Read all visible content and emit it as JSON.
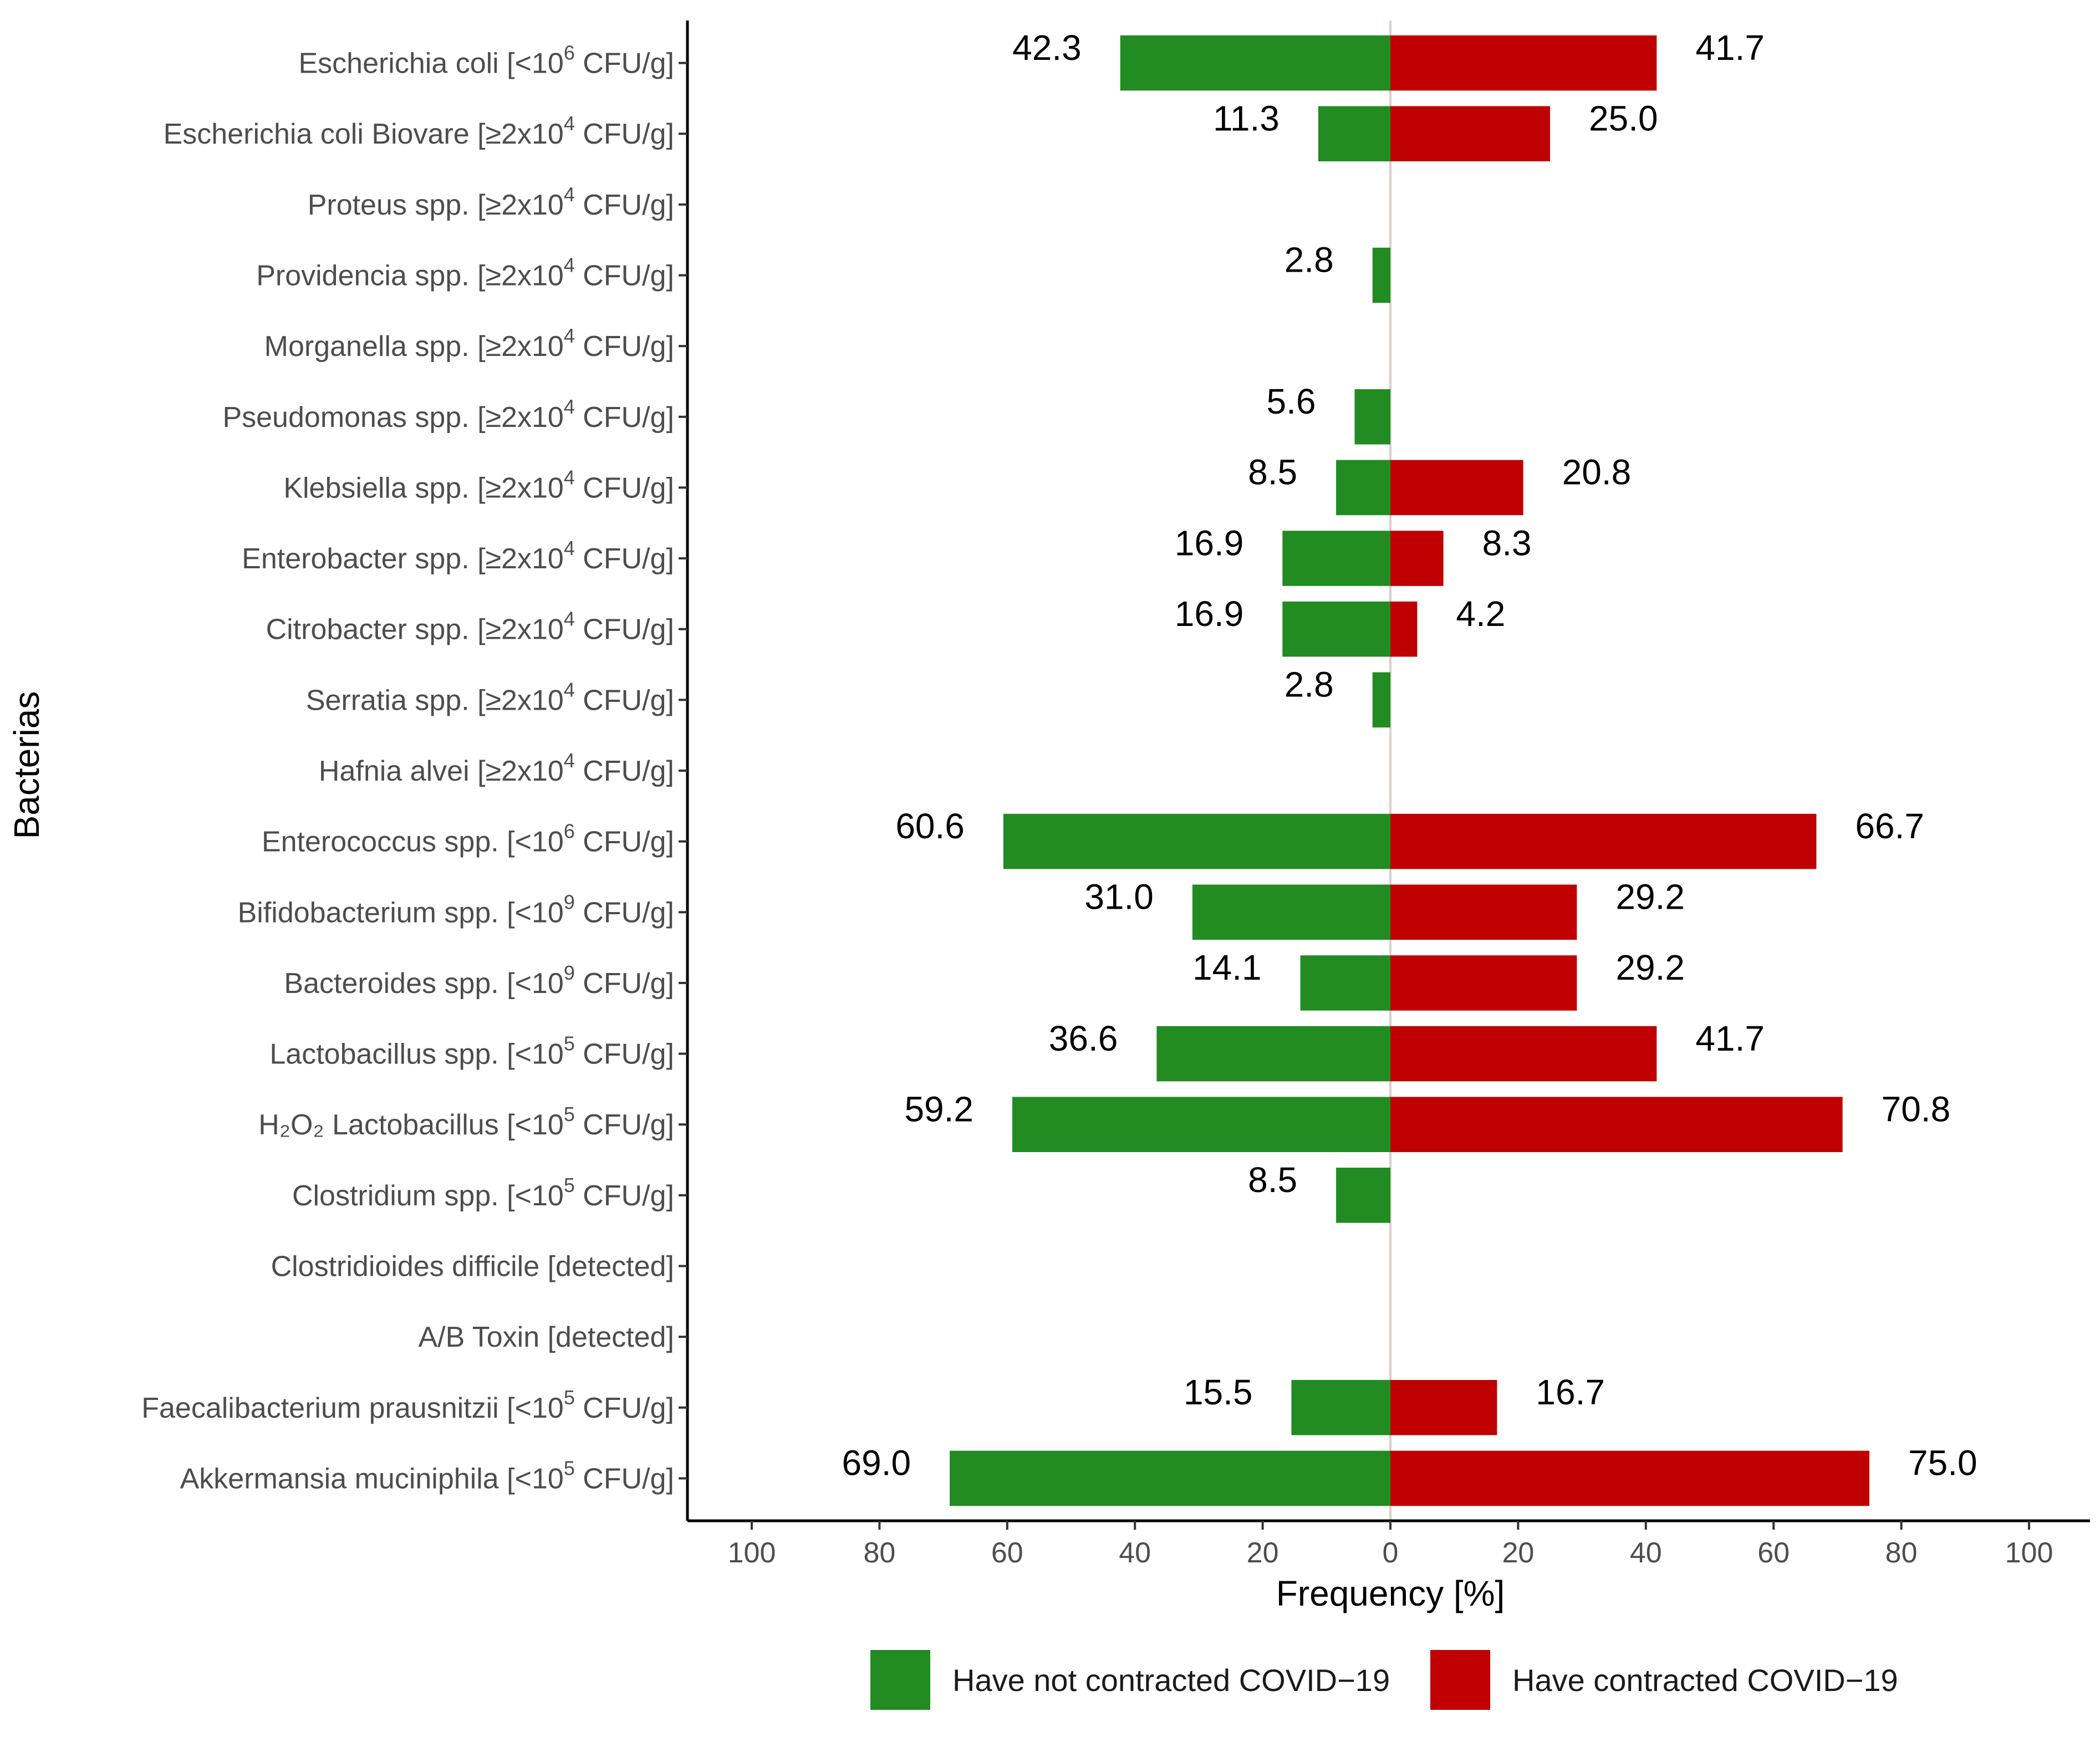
{
  "chart_data": {
    "type": "bar",
    "orientation": "horizontal-diverging",
    "ylabel": "Bacterias",
    "xlabel": "Frequency [%]",
    "xlim": [
      -100,
      100
    ],
    "x_ticks": [
      -100,
      -80,
      -60,
      -40,
      -20,
      0,
      20,
      40,
      60,
      80,
      100
    ],
    "x_tick_labels": [
      "100",
      "80",
      "60",
      "40",
      "20",
      "0",
      "20",
      "40",
      "60",
      "80",
      "100"
    ],
    "legend_position": "bottom",
    "categories": [
      {
        "name": "Escherichia coli",
        "cond": "<",
        "base": "10",
        "exp": "6",
        "unit": "CFU/g"
      },
      {
        "name": "Escherichia coli Biovare",
        "cond": "≥",
        "coef": "2x",
        "base": "10",
        "exp": "4",
        "unit": "CFU/g"
      },
      {
        "name": "Proteus spp.",
        "cond": "≥",
        "coef": "2x",
        "base": "10",
        "exp": "4",
        "unit": "CFU/g"
      },
      {
        "name": "Providencia spp.",
        "cond": "≥",
        "coef": "2x",
        "base": "10",
        "exp": "4",
        "unit": "CFU/g"
      },
      {
        "name": "Morganella spp.",
        "cond": "≥",
        "coef": "2x",
        "base": "10",
        "exp": "4",
        "unit": "CFU/g"
      },
      {
        "name": "Pseudomonas spp.",
        "cond": "≥",
        "coef": "2x",
        "base": "10",
        "exp": "4",
        "unit": "CFU/g"
      },
      {
        "name": "Klebsiella spp.",
        "cond": "≥",
        "coef": "2x",
        "base": "10",
        "exp": "4",
        "unit": "CFU/g"
      },
      {
        "name": "Enterobacter spp.",
        "cond": "≥",
        "coef": "2x",
        "base": "10",
        "exp": "4",
        "unit": "CFU/g"
      },
      {
        "name": "Citrobacter spp.",
        "cond": "≥",
        "coef": "2x",
        "base": "10",
        "exp": "4",
        "unit": "CFU/g"
      },
      {
        "name": "Serratia spp.",
        "cond": "≥",
        "coef": "2x",
        "base": "10",
        "exp": "4",
        "unit": "CFU/g"
      },
      {
        "name": "Hafnia alvei",
        "cond": "≥",
        "coef": "2x",
        "base": "10",
        "exp": "4",
        "unit": "CFU/g"
      },
      {
        "name": "Enterococcus spp.",
        "cond": "<",
        "base": "10",
        "exp": "6",
        "unit": "CFU/g"
      },
      {
        "name": "Bifidobacterium spp.",
        "cond": "<",
        "base": "10",
        "exp": "9",
        "unit": "CFU/g"
      },
      {
        "name": "Bacteroides spp.",
        "cond": "<",
        "base": "10",
        "exp": "9",
        "unit": "CFU/g"
      },
      {
        "name": "Lactobacillus spp.",
        "cond": "<",
        "base": "10",
        "exp": "5",
        "unit": "CFU/g"
      },
      {
        "name": "H₂O₂ Lactobacillus",
        "cond": "<",
        "base": "10",
        "exp": "5",
        "unit": "CFU/g"
      },
      {
        "name": "Clostridium spp.",
        "cond": "<",
        "base": "10",
        "exp": "5",
        "unit": "CFU/g"
      },
      {
        "name": "Clostridioides difficile",
        "plain": "detected"
      },
      {
        "name": "A/B Toxin",
        "plain": "detected"
      },
      {
        "name": "Faecalibacterium prausnitzii",
        "cond": "<",
        "base": "10",
        "exp": "5",
        "unit": "CFU/g"
      },
      {
        "name": "Akkermansia muciniphila",
        "cond": "<",
        "base": "10",
        "exp": "5",
        "unit": "CFU/g"
      }
    ],
    "series": [
      {
        "name": "Have not contracted COVID−19",
        "color": "#228B22",
        "side": "left",
        "values": [
          42.3,
          11.3,
          0,
          2.8,
          0,
          5.6,
          8.5,
          16.9,
          16.9,
          2.8,
          0,
          60.6,
          31.0,
          14.1,
          36.6,
          59.2,
          8.5,
          0,
          0,
          15.5,
          69.0
        ],
        "labels": [
          "42.3",
          "11.3",
          "",
          "2.8",
          "",
          "5.6",
          "8.5",
          "16.9",
          "16.9",
          "2.8",
          "",
          "60.6",
          "31.0",
          "14.1",
          "36.6",
          "59.2",
          "8.5",
          "",
          "",
          "15.5",
          "69.0"
        ]
      },
      {
        "name": "Have contracted COVID−19",
        "color": "#C00000",
        "side": "right",
        "values": [
          41.7,
          25.0,
          0,
          0,
          0,
          0,
          20.8,
          8.3,
          4.2,
          0,
          0,
          66.7,
          29.2,
          29.2,
          41.7,
          70.8,
          0,
          0,
          0,
          16.7,
          75.0
        ],
        "labels": [
          "41.7",
          "25.0",
          "",
          "",
          "",
          "",
          "20.8",
          "8.3",
          "4.2",
          "",
          "",
          "66.7",
          "29.2",
          "29.2",
          "41.7",
          "70.8",
          "",
          "",
          "",
          "16.7",
          "75.0"
        ]
      }
    ]
  }
}
